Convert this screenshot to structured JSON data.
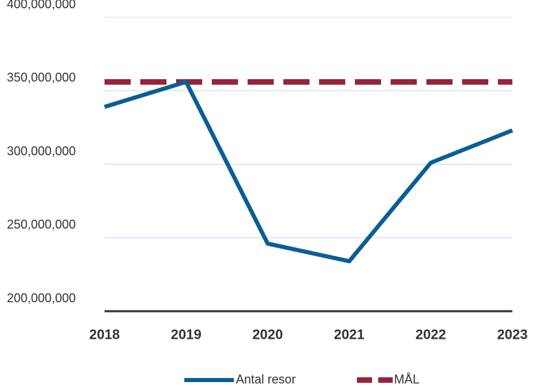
{
  "chart_data": {
    "type": "line",
    "categories": [
      "2018",
      "2019",
      "2020",
      "2021",
      "2022",
      "2023"
    ],
    "series": [
      {
        "name": "Antal resor",
        "color": "#0a5e94",
        "dashed": false,
        "values": [
          339000000,
          356000000,
          246000000,
          234000000,
          301000000,
          323000000
        ]
      },
      {
        "name": "MÅL",
        "color": "#98233a",
        "dashed": true,
        "values": [
          356000000,
          356000000,
          356000000,
          356000000,
          356000000,
          356000000
        ]
      }
    ],
    "ylim": [
      200000000,
      400000000
    ],
    "yticks": [
      {
        "value": 200000000,
        "label": "200,000,000"
      },
      {
        "value": 250000000,
        "label": "250,000,000"
      },
      {
        "value": 300000000,
        "label": "300,000,000"
      },
      {
        "value": 350000000,
        "label": "350,000,000"
      },
      {
        "value": 400000000,
        "label": "400,000,000"
      }
    ],
    "grid": true,
    "legend": "bottom"
  }
}
